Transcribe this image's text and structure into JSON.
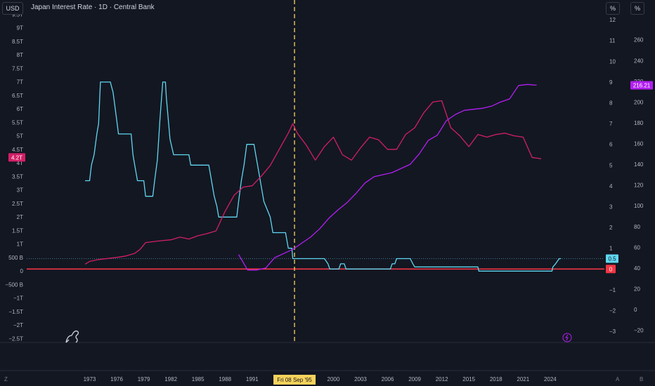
{
  "header": {
    "currency_label": "USD",
    "title": "Japan Interest Rate · 1D · Central Bank",
    "pct_button_1": "%",
    "pct_button_2": "%"
  },
  "footer": {
    "z_label": "Z",
    "a_label": "A",
    "b_label": "B",
    "crosshair_date": "Fri 08 Sep '95"
  },
  "colors": {
    "background": "#131722",
    "cyan": "#5fd7f0",
    "magenta": "#d21f66",
    "purple": "#b21ff2",
    "zero_line": "#f23645",
    "crosshair": "#f7d35b",
    "axis_text": "#b2b5be"
  },
  "chart_data": {
    "type": "line",
    "x_ticks": [
      "1973",
      "1976",
      "1979",
      "1982",
      "1985",
      "1988",
      "1991",
      "2000",
      "2003",
      "2006",
      "2009",
      "2012",
      "2015",
      "2018",
      "2021",
      "2024"
    ],
    "axes": {
      "left": {
        "ticks": [
          "9.5T",
          "9T",
          "8.5T",
          "8T",
          "7.5T",
          "7T",
          "6.5T",
          "6T",
          "5.5T",
          "5T",
          "4.5T",
          "4T",
          "3.5T",
          "3T",
          "2.5T",
          "2T",
          "1.5T",
          "1T",
          "500 B",
          "0",
          "−500 B",
          "−1T",
          "−1.5T",
          "−2T",
          "−2.5T"
        ],
        "badge": "4.2T"
      },
      "right_inner": {
        "ticks": [
          "12",
          "11",
          "10",
          "9",
          "8",
          "7",
          "6",
          "5",
          "4",
          "3",
          "2",
          "1",
          "0",
          "−1",
          "−2",
          "−3"
        ],
        "badges": [
          "0.5",
          "0"
        ]
      },
      "right_outer": {
        "ticks": [
          "260",
          "240",
          "220",
          "200",
          "180",
          "160",
          "140",
          "120",
          "100",
          "80",
          "60",
          "40",
          "20",
          "0",
          "−20"
        ],
        "badge": "216.21"
      }
    },
    "series": [
      {
        "name": "Japan Interest Rate",
        "color": "#5fd7f0",
        "axis": "right_inner",
        "points": [
          [
            1972.5,
            4.25
          ],
          [
            1973.0,
            4.25
          ],
          [
            1973.2,
            5.0
          ],
          [
            1973.5,
            5.5
          ],
          [
            1973.8,
            6.5
          ],
          [
            1974.0,
            7.0
          ],
          [
            1974.2,
            9.0
          ],
          [
            1975.3,
            9.0
          ],
          [
            1975.6,
            8.5
          ],
          [
            1975.9,
            7.5
          ],
          [
            1976.2,
            6.5
          ],
          [
            1977.6,
            6.5
          ],
          [
            1977.8,
            5.5
          ],
          [
            1978.0,
            5.0
          ],
          [
            1978.3,
            4.25
          ],
          [
            1979.0,
            4.25
          ],
          [
            1979.2,
            3.5
          ],
          [
            1980.0,
            3.5
          ],
          [
            1980.2,
            4.25
          ],
          [
            1980.5,
            5.25
          ],
          [
            1980.8,
            7.25
          ],
          [
            1981.1,
            9.0
          ],
          [
            1981.4,
            9.0
          ],
          [
            1981.5,
            8.25
          ],
          [
            1981.7,
            7.25
          ],
          [
            1981.9,
            6.25
          ],
          [
            1982.3,
            5.5
          ],
          [
            1984.0,
            5.5
          ],
          [
            1984.2,
            5.0
          ],
          [
            1986.2,
            5.0
          ],
          [
            1986.4,
            4.5
          ],
          [
            1986.6,
            4.0
          ],
          [
            1986.8,
            3.5
          ],
          [
            1987.1,
            3.0
          ],
          [
            1987.3,
            2.5
          ],
          [
            1989.3,
            2.5
          ],
          [
            1989.5,
            3.25
          ],
          [
            1989.8,
            4.25
          ],
          [
            1990.1,
            5.0
          ],
          [
            1990.4,
            6.0
          ],
          [
            1991.2,
            6.0
          ],
          [
            1991.4,
            5.5
          ],
          [
            1991.6,
            5.0
          ],
          [
            1991.8,
            4.5
          ],
          [
            1992.1,
            3.75
          ],
          [
            1992.3,
            3.25
          ],
          [
            1993.0,
            2.5
          ],
          [
            1993.3,
            1.75
          ],
          [
            1994.7,
            1.75
          ],
          [
            1995.0,
            1.0
          ],
          [
            1995.4,
            1.0
          ],
          [
            1995.5,
            0.5
          ],
          [
            1999.0,
            0.5
          ],
          [
            1999.4,
            0.25
          ],
          [
            1999.6,
            0.0
          ],
          [
            2000.6,
            0.0
          ],
          [
            2000.8,
            0.25
          ],
          [
            2001.2,
            0.25
          ],
          [
            2001.4,
            0.0
          ],
          [
            2006.3,
            0.0
          ],
          [
            2006.5,
            0.25
          ],
          [
            2006.8,
            0.25
          ],
          [
            2007.0,
            0.5
          ],
          [
            2008.5,
            0.5
          ],
          [
            2008.8,
            0.25
          ],
          [
            2009.0,
            0.1
          ],
          [
            2016.0,
            0.1
          ],
          [
            2016.1,
            -0.1
          ],
          [
            2024.2,
            -0.1
          ],
          [
            2024.3,
            0.1
          ],
          [
            2024.6,
            0.25
          ],
          [
            2025.0,
            0.5
          ],
          [
            2025.2,
            0.5
          ]
        ]
      },
      {
        "name": "",
        "color": "#d21f66",
        "axis": "left",
        "points": [
          [
            1972.5,
            0.25
          ],
          [
            1973,
            0.35
          ],
          [
            1974,
            0.42
          ],
          [
            1975,
            0.46
          ],
          [
            1976,
            0.5
          ],
          [
            1977,
            0.55
          ],
          [
            1978,
            0.65
          ],
          [
            1978.6,
            0.8
          ],
          [
            1979.2,
            1.05
          ],
          [
            1980,
            1.08
          ],
          [
            1981,
            1.12
          ],
          [
            1982,
            1.15
          ],
          [
            1983,
            1.25
          ],
          [
            1984,
            1.18
          ],
          [
            1985,
            1.3
          ],
          [
            1986,
            1.38
          ],
          [
            1987,
            1.48
          ],
          [
            1988,
            2.2
          ],
          [
            1989,
            2.8
          ],
          [
            1990,
            3.1
          ],
          [
            1991,
            3.15
          ],
          [
            1992,
            3.5
          ],
          [
            1993,
            3.9
          ],
          [
            1994,
            4.5
          ],
          [
            1995,
            5.1
          ],
          [
            1995.5,
            5.45
          ],
          [
            1996,
            5.1
          ],
          [
            1997,
            4.65
          ],
          [
            1998,
            4.1
          ],
          [
            1999,
            4.6
          ],
          [
            2000,
            4.95
          ],
          [
            2001,
            4.3
          ],
          [
            2002,
            4.1
          ],
          [
            2003,
            4.55
          ],
          [
            2004,
            4.95
          ],
          [
            2005,
            4.85
          ],
          [
            2006,
            4.5
          ],
          [
            2007,
            4.5
          ],
          [
            2008,
            5.05
          ],
          [
            2009,
            5.3
          ],
          [
            2010,
            5.85
          ],
          [
            2011,
            6.25
          ],
          [
            2012,
            6.3
          ],
          [
            2013,
            5.3
          ],
          [
            2014,
            5.0
          ],
          [
            2015,
            4.6
          ],
          [
            2016,
            5.05
          ],
          [
            2017,
            4.95
          ],
          [
            2018,
            5.05
          ],
          [
            2019,
            5.1
          ],
          [
            2020,
            5.0
          ],
          [
            2021,
            4.95
          ],
          [
            2022,
            4.2
          ],
          [
            2023,
            4.15
          ]
        ]
      },
      {
        "name": "",
        "color": "#b21ff2",
        "axis": "right_outer",
        "points": [
          [
            1989.5,
            53
          ],
          [
            1990.5,
            38
          ],
          [
            1991.5,
            38
          ],
          [
            1992.5,
            40
          ],
          [
            1993.5,
            50
          ],
          [
            1994.5,
            54
          ],
          [
            1995.5,
            58
          ],
          [
            1996.5,
            64
          ],
          [
            1997.5,
            70
          ],
          [
            1998.5,
            78
          ],
          [
            1999.5,
            88
          ],
          [
            2000.5,
            96
          ],
          [
            2001.5,
            103
          ],
          [
            2002.5,
            112
          ],
          [
            2003.5,
            122
          ],
          [
            2004.5,
            128
          ],
          [
            2005.5,
            130
          ],
          [
            2006.5,
            132
          ],
          [
            2007.5,
            136
          ],
          [
            2008.5,
            140
          ],
          [
            2009.5,
            150
          ],
          [
            2010.5,
            163
          ],
          [
            2011.5,
            168
          ],
          [
            2012.5,
            182
          ],
          [
            2013.5,
            188
          ],
          [
            2014.5,
            192
          ],
          [
            2015.5,
            193
          ],
          [
            2016.5,
            194
          ],
          [
            2017.5,
            196
          ],
          [
            2018.5,
            200
          ],
          [
            2019.5,
            203
          ],
          [
            2020.5,
            216
          ],
          [
            2021.5,
            217
          ],
          [
            2022.5,
            216.21
          ]
        ]
      }
    ],
    "crosshair_x": 1995.69,
    "ylim_left": [
      -2.5,
      9.5
    ],
    "ylim_right_inner": [
      -3,
      12
    ],
    "ylim_right_outer": [
      -20,
      260
    ],
    "grid": false,
    "legend": "none"
  }
}
